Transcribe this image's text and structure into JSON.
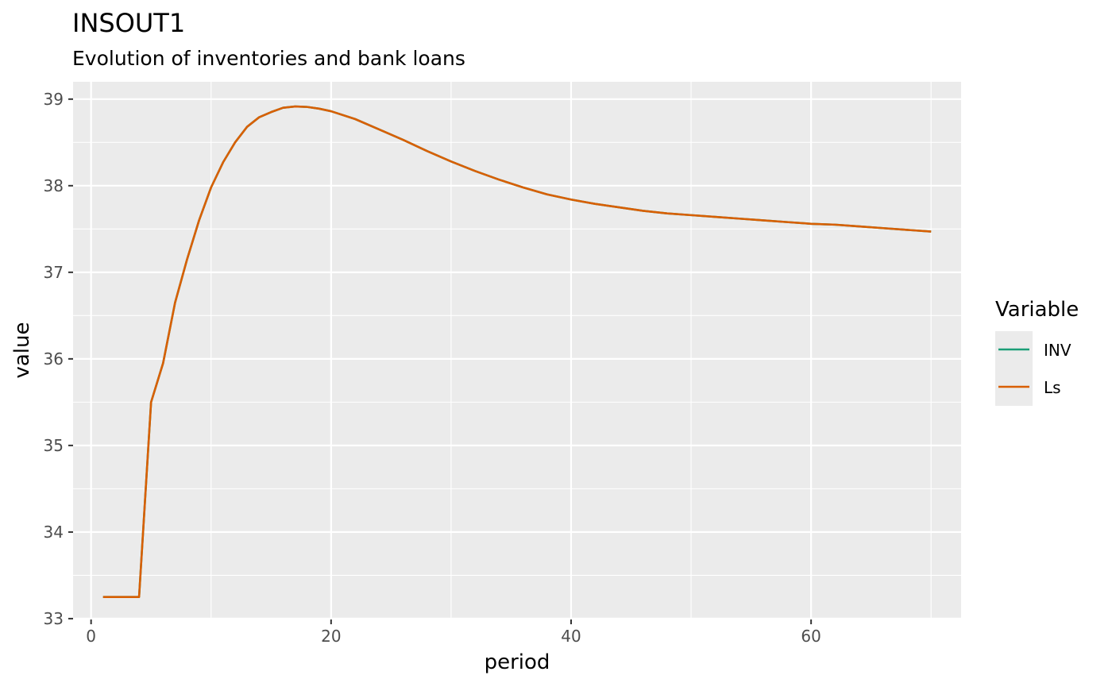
{
  "chart_data": {
    "type": "line",
    "title": "INSOUT1",
    "subtitle": "Evolution of inventories and bank loans",
    "xlabel": "period",
    "ylabel": "value",
    "xlim": [
      -1.5,
      72.5
    ],
    "ylim": [
      32.99,
      39.2
    ],
    "x_ticks": [
      0,
      20,
      40,
      60
    ],
    "x_tick_labels": [
      "0",
      "20",
      "40",
      "60"
    ],
    "y_ticks": [
      33,
      34,
      35,
      36,
      37,
      38,
      39
    ],
    "y_tick_labels": [
      "33",
      "34",
      "35",
      "36",
      "37",
      "38",
      "39"
    ],
    "grid": true,
    "legend": {
      "title": "Variable",
      "position": "right"
    },
    "series": [
      {
        "name": "INV",
        "color": "#1b9e77",
        "x": [
          1,
          2,
          3,
          4,
          5,
          6,
          7,
          8,
          9,
          10,
          11,
          12,
          13,
          14,
          15,
          16,
          17,
          18,
          19,
          20,
          22,
          24,
          26,
          28,
          30,
          32,
          34,
          36,
          38,
          40,
          42,
          44,
          46,
          48,
          50,
          52,
          54,
          56,
          58,
          60,
          62,
          64,
          66,
          68,
          70
        ],
        "y": [
          33.25,
          33.25,
          33.25,
          33.25,
          35.5,
          35.95,
          36.65,
          37.15,
          37.6,
          37.98,
          38.27,
          38.5,
          38.68,
          38.79,
          38.85,
          38.9,
          38.915,
          38.91,
          38.89,
          38.86,
          38.77,
          38.65,
          38.53,
          38.4,
          38.28,
          38.17,
          38.07,
          37.98,
          37.9,
          37.84,
          37.79,
          37.75,
          37.71,
          37.68,
          37.66,
          37.64,
          37.62,
          37.6,
          37.58,
          37.56,
          37.55,
          37.53,
          37.51,
          37.49,
          37.47
        ]
      },
      {
        "name": "Ls",
        "color": "#d95f02",
        "x": [
          1,
          2,
          3,
          4,
          5,
          6,
          7,
          8,
          9,
          10,
          11,
          12,
          13,
          14,
          15,
          16,
          17,
          18,
          19,
          20,
          22,
          24,
          26,
          28,
          30,
          32,
          34,
          36,
          38,
          40,
          42,
          44,
          46,
          48,
          50,
          52,
          54,
          56,
          58,
          60,
          62,
          64,
          66,
          68,
          70
        ],
        "y": [
          33.25,
          33.25,
          33.25,
          33.25,
          35.5,
          35.95,
          36.65,
          37.15,
          37.6,
          37.98,
          38.27,
          38.5,
          38.68,
          38.79,
          38.85,
          38.9,
          38.915,
          38.91,
          38.89,
          38.86,
          38.77,
          38.65,
          38.53,
          38.4,
          38.28,
          38.17,
          38.07,
          37.98,
          37.9,
          37.84,
          37.79,
          37.75,
          37.71,
          37.68,
          37.66,
          37.64,
          37.62,
          37.6,
          37.58,
          37.56,
          37.55,
          37.53,
          37.51,
          37.49,
          37.47
        ]
      }
    ]
  }
}
